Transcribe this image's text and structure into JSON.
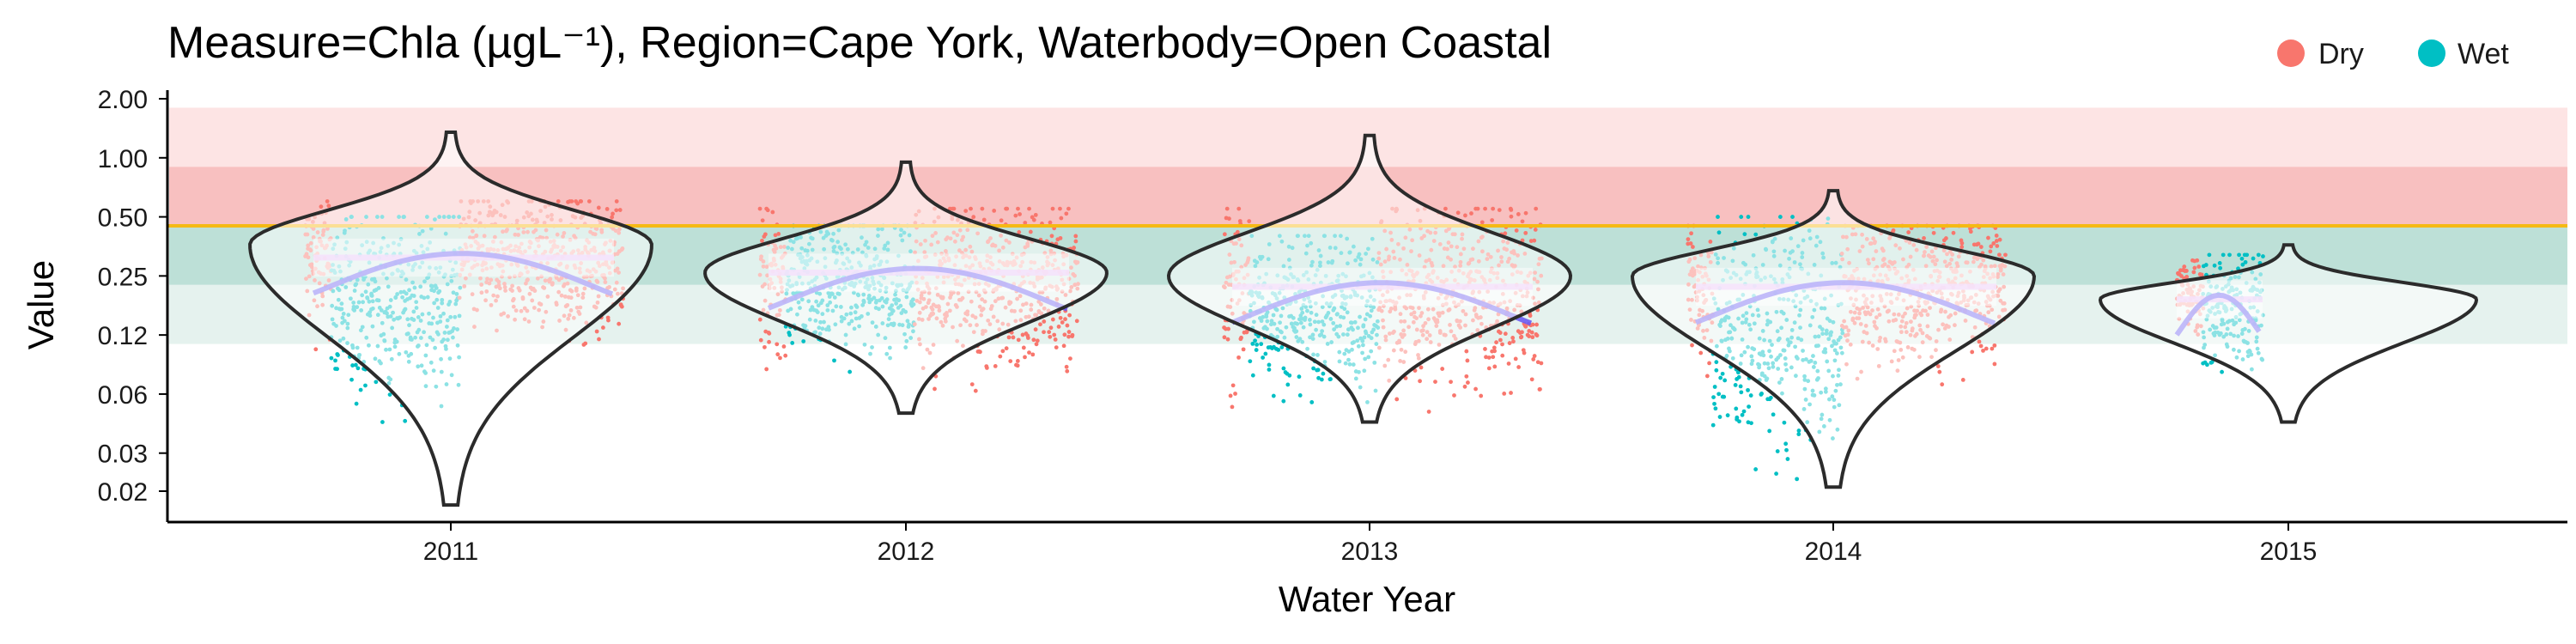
{
  "chart_data": {
    "type": "scatter",
    "title": "Measure=Chla (µgL⁻¹), Region=Cape York, Waterbody=Open Coastal",
    "xlabel": "Water Year",
    "ylabel": "Value",
    "y_scale": "log",
    "ylim": [
      0.016,
      2.0
    ],
    "y_ticks": [
      "2.00",
      "1.00",
      "0.50",
      "0.25",
      "0.12",
      "0.06",
      "0.03",
      "0.02"
    ],
    "y_tick_values": [
      2.0,
      1.0,
      0.5,
      0.25,
      0.125,
      0.0625,
      0.03125,
      0.02
    ],
    "categories": [
      "2011",
      "2012",
      "2013",
      "2014",
      "2015"
    ],
    "guideline": 0.45,
    "bands": [
      {
        "from": 0.9,
        "to": 1.8,
        "color": "#fde4e4"
      },
      {
        "from": 0.45,
        "to": 0.9,
        "color": "#f8c0c0"
      },
      {
        "from": 0.225,
        "to": 0.45,
        "color": "#bde0d7"
      },
      {
        "from": 0.1125,
        "to": 0.225,
        "color": "#e5f2ee"
      }
    ],
    "legend": {
      "position": "top-right",
      "entries": [
        {
          "name": "Dry",
          "color": "#f8766d"
        },
        {
          "name": "Wet",
          "color": "#00bfc4"
        }
      ]
    },
    "series": [
      {
        "name": "Dry",
        "color": "#f8766d"
      },
      {
        "name": "Wet",
        "color": "#00bfc4"
      }
    ],
    "years": [
      {
        "year": "2011",
        "median": 0.31,
        "violin_min": 0.017,
        "violin_max": 1.35,
        "violin_mode": 0.36,
        "dry_range": [
          0.1,
          0.6
        ],
        "wet_range": [
          0.045,
          0.5
        ]
      },
      {
        "year": "2012",
        "median": 0.26,
        "violin_min": 0.05,
        "violin_max": 0.95,
        "violin_mode": 0.26,
        "dry_range": [
          0.06,
          0.55
        ],
        "wet_range": [
          0.08,
          0.45
        ]
      },
      {
        "year": "2013",
        "median": 0.22,
        "violin_min": 0.045,
        "violin_max": 1.3,
        "violin_mode": 0.25,
        "dry_range": [
          0.05,
          0.55
        ],
        "wet_range": [
          0.05,
          0.4
        ]
      },
      {
        "year": "2014",
        "median": 0.22,
        "violin_min": 0.021,
        "violin_max": 0.68,
        "violin_mode": 0.25,
        "dry_range": [
          0.07,
          0.45
        ],
        "wet_range": [
          0.022,
          0.5
        ]
      },
      {
        "year": "2015",
        "median": 0.19,
        "violin_min": 0.045,
        "violin_max": 0.36,
        "violin_mode": 0.19,
        "dry_range": [
          0.1,
          0.3
        ],
        "wet_range": [
          0.06,
          0.32
        ]
      }
    ]
  }
}
